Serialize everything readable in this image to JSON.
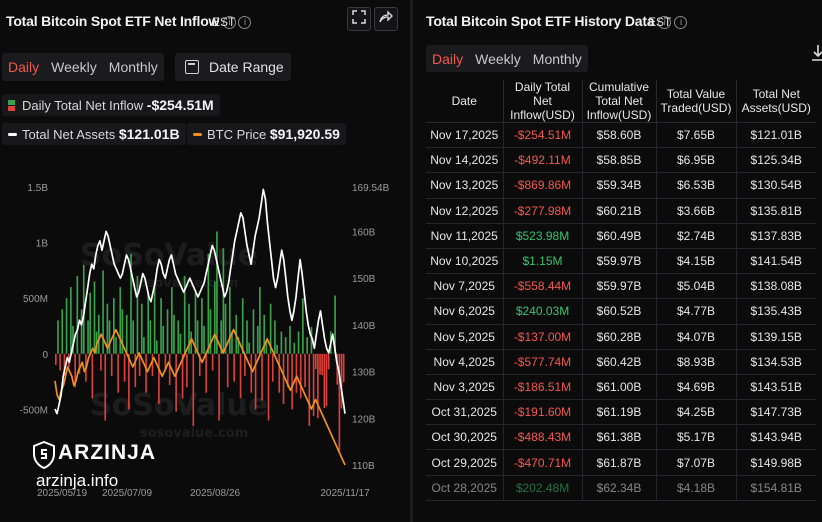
{
  "left_panel": {
    "title": "Total Bitcoin Spot ETF Net Inflow",
    "timezone": "EST",
    "period_tabs": [
      {
        "label": "Daily",
        "active": true
      },
      {
        "label": "Weekly",
        "active": false
      },
      {
        "label": "Monthly",
        "active": false
      }
    ],
    "date_range_label": "Date Range",
    "legend": {
      "net_inflow_label": "Daily Total Net Inflow",
      "net_inflow_value": "-$254.51M",
      "net_assets_label": "Total Net Assets",
      "net_assets_value": "$121.01B",
      "btc_price_label": "BTC Price",
      "btc_price_value": "$91,920.59"
    },
    "watermark": "SoSoValue",
    "watermark_url": "sosovalue.com"
  },
  "brand": {
    "name": "ARZINJA",
    "url": "arzinja.info"
  },
  "colors": {
    "inflow_positive": "#3aa34a",
    "inflow_negative": "#d9413a",
    "net_assets_line": "#ffffff",
    "btc_price_line": "#f0901f",
    "accent": "#f2584f"
  },
  "chart_data": {
    "type": "bar+line",
    "x_tick_labels": [
      "2025/05/19",
      "2025/07/09",
      "2025/08/26",
      "2025/11/17"
    ],
    "left_axis": {
      "ticks": [
        "1.5B",
        "1B",
        "500M",
        "0",
        "-500M"
      ],
      "ylim": [
        -1000000000,
        1500000000
      ]
    },
    "right_axis": {
      "ticks": [
        "169.54B",
        "160B",
        "150B",
        "140B",
        "130B",
        "120B",
        "110B"
      ],
      "ylim": [
        110,
        169.54
      ]
    },
    "series": [
      {
        "name": "Daily Total Net Inflow",
        "kind": "bar",
        "axis": "left",
        "values_millions": [
          -100,
          300,
          -150,
          400,
          -200,
          500,
          -120,
          600,
          250,
          -300,
          700,
          -180,
          400,
          800,
          -250,
          300,
          550,
          -400,
          650,
          200,
          350,
          -150,
          750,
          -600,
          450,
          300,
          -200,
          500,
          150,
          -350,
          600,
          400,
          -250,
          350,
          -500,
          900,
          300,
          -300,
          700,
          -200,
          450,
          150,
          -350,
          550,
          300,
          -200,
          650,
          120,
          -450,
          500,
          250,
          -150,
          400,
          -280,
          600,
          350,
          -520,
          300,
          180,
          -400,
          700,
          -300,
          450,
          200,
          -650,
          550,
          300,
          -200,
          500,
          250,
          -350,
          900,
          400,
          -150,
          650,
          1100,
          -600,
          300,
          950,
          450,
          -300,
          600,
          200,
          -250,
          350,
          150,
          -400,
          500,
          -200,
          300,
          100,
          -350,
          400,
          -500,
          250,
          600,
          -420,
          350,
          120,
          -600,
          450,
          -250,
          300,
          80,
          -350,
          200,
          -450,
          150,
          -300,
          250,
          -500,
          100,
          -350,
          200,
          -400,
          500,
          -300,
          150,
          -650,
          240,
          -558,
          -137,
          -578,
          -186,
          -192,
          -488,
          -471,
          -140,
          202,
          1,
          524,
          -278,
          -870,
          -492,
          -255
        ]
      },
      {
        "name": "Total Net Assets",
        "kind": "line",
        "axis": "right",
        "values_billions": [
          122,
          121,
          123,
          125,
          129,
          131,
          133,
          132,
          134,
          136,
          138,
          139,
          141,
          140,
          142,
          145,
          148,
          151,
          153,
          152,
          155,
          157,
          158,
          156,
          158,
          160,
          159,
          157,
          155,
          153,
          152,
          151,
          150,
          151,
          153,
          155,
          154,
          152,
          150,
          148,
          146,
          147,
          149,
          151,
          150,
          148,
          146,
          145,
          147,
          149,
          152,
          154,
          153,
          151,
          150,
          152,
          154,
          155,
          153,
          151,
          150,
          149,
          148,
          147,
          148,
          149,
          150,
          149,
          148,
          147,
          146,
          147,
          148,
          149,
          151,
          153,
          155,
          157,
          156,
          154,
          152,
          150,
          148,
          146,
          147,
          149,
          152,
          155,
          158,
          160,
          162,
          164,
          163,
          160,
          157,
          155,
          153,
          156,
          159,
          161,
          163,
          166,
          169,
          167,
          162,
          158,
          154,
          150,
          148,
          150,
          153,
          156,
          154,
          150,
          146,
          143,
          141,
          143,
          146,
          150,
          154,
          151,
          147,
          143,
          140,
          138,
          137,
          135,
          138,
          141,
          143,
          140,
          137,
          135,
          134,
          136,
          138,
          135,
          132,
          130,
          127,
          124,
          121
        ]
      },
      {
        "name": "BTC Price",
        "kind": "line",
        "axis": "right",
        "values_scaled": [
          128,
          125,
          124,
          126,
          127,
          129,
          131,
          130,
          129,
          127,
          128,
          130,
          131,
          132,
          130,
          131,
          133,
          134,
          135,
          134,
          136,
          137,
          138,
          137,
          136,
          135,
          136,
          137,
          138,
          139,
          138,
          137,
          136,
          135,
          134,
          133,
          132,
          131,
          132,
          133,
          134,
          133,
          132,
          131,
          130,
          131,
          132,
          133,
          132,
          131,
          130,
          129,
          130,
          131,
          132,
          131,
          130,
          129,
          130,
          131,
          132,
          133,
          134,
          135,
          136,
          137,
          136,
          135,
          134,
          133,
          132,
          133,
          134,
          135,
          136,
          137,
          138,
          137,
          136,
          135,
          134,
          135,
          136,
          137,
          138,
          139,
          138,
          137,
          136,
          135,
          134,
          133,
          132,
          131,
          130,
          131,
          132,
          133,
          134,
          135,
          136,
          137,
          136,
          135,
          134,
          133,
          132,
          131,
          130,
          129,
          128,
          127,
          126,
          127,
          128,
          129,
          128,
          127,
          126,
          125,
          124,
          123,
          122,
          123,
          124,
          123,
          122,
          121,
          120,
          119,
          118,
          117,
          116,
          115,
          114,
          113,
          112,
          111,
          110
        ]
      }
    ],
    "legend_placement": "top-left",
    "grid": false
  },
  "right_panel": {
    "title": "Total Bitcoin Spot ETF History Data",
    "timezone": "EST",
    "period_tabs": [
      {
        "label": "Daily",
        "active": true
      },
      {
        "label": "Weekly",
        "active": false
      },
      {
        "label": "Monthly",
        "active": false
      }
    ],
    "columns": [
      "Date",
      "Daily Total Net Inflow(USD)",
      "Cumulative Total Net Inflow(USD)",
      "Total Value Traded(USD)",
      "Total Net Assets(USD)"
    ],
    "rows": [
      {
        "date": "Nov 17,2025",
        "inflow": "-$254.51M",
        "cumulative": "$58.60B",
        "traded": "$7.65B",
        "assets": "$121.01B"
      },
      {
        "date": "Nov 14,2025",
        "inflow": "-$492.11M",
        "cumulative": "$58.85B",
        "traded": "$6.95B",
        "assets": "$125.34B"
      },
      {
        "date": "Nov 13,2025",
        "inflow": "-$869.86M",
        "cumulative": "$59.34B",
        "traded": "$6.53B",
        "assets": "$130.54B"
      },
      {
        "date": "Nov 12,2025",
        "inflow": "-$277.98M",
        "cumulative": "$60.21B",
        "traded": "$3.66B",
        "assets": "$135.81B"
      },
      {
        "date": "Nov 11,2025",
        "inflow": "$523.98M",
        "cumulative": "$60.49B",
        "traded": "$2.74B",
        "assets": "$137.83B"
      },
      {
        "date": "Nov 10,2025",
        "inflow": "$1.15M",
        "cumulative": "$59.97B",
        "traded": "$4.15B",
        "assets": "$141.54B"
      },
      {
        "date": "Nov 7,2025",
        "inflow": "-$558.44M",
        "cumulative": "$59.97B",
        "traded": "$5.04B",
        "assets": "$138.08B"
      },
      {
        "date": "Nov 6,2025",
        "inflow": "$240.03M",
        "cumulative": "$60.52B",
        "traded": "$4.77B",
        "assets": "$135.43B"
      },
      {
        "date": "Nov 5,2025",
        "inflow": "-$137.00M",
        "cumulative": "$60.28B",
        "traded": "$4.07B",
        "assets": "$139.15B"
      },
      {
        "date": "Nov 4,2025",
        "inflow": "-$577.74M",
        "cumulative": "$60.42B",
        "traded": "$8.93B",
        "assets": "$134.53B"
      },
      {
        "date": "Nov 3,2025",
        "inflow": "-$186.51M",
        "cumulative": "$61.00B",
        "traded": "$4.69B",
        "assets": "$143.51B"
      },
      {
        "date": "Oct 31,2025",
        "inflow": "-$191.60M",
        "cumulative": "$61.19B",
        "traded": "$4.25B",
        "assets": "$147.73B"
      },
      {
        "date": "Oct 30,2025",
        "inflow": "-$488.43M",
        "cumulative": "$61.38B",
        "traded": "$5.17B",
        "assets": "$143.94B"
      },
      {
        "date": "Oct 29,2025",
        "inflow": "-$470.71M",
        "cumulative": "$61.87B",
        "traded": "$7.07B",
        "assets": "$149.98B"
      },
      {
        "date": "Oct 28,2025",
        "inflow": "$202.48M",
        "cumulative": "$62.34B",
        "traded": "$4.18B",
        "assets": "$154.81B"
      }
    ]
  }
}
